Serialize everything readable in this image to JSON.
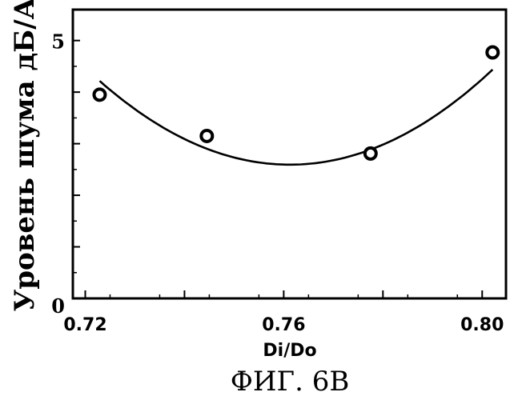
{
  "chart_data": {
    "type": "scatter",
    "xlabel": "Di/Do",
    "ylabel": "Уровень шума дБ/А",
    "caption": "ФИГ. 6В",
    "xlim": [
      0.7175,
      0.8048
    ],
    "ylim": [
      0,
      5.6
    ],
    "x_ticks": [
      {
        "value": 0.72,
        "label": "0.72"
      },
      {
        "value": 0.76,
        "label": "0.76"
      },
      {
        "value": 0.8,
        "label": "0.80"
      }
    ],
    "y_ticks": [
      {
        "value": 0,
        "label": "0"
      },
      {
        "value": 5,
        "label": "5"
      }
    ],
    "points": [
      {
        "x": 0.7229,
        "y": 3.95
      },
      {
        "x": 0.7445,
        "y": 3.15
      },
      {
        "x": 0.7775,
        "y": 2.81
      },
      {
        "x": 0.8021,
        "y": 4.77
      }
    ],
    "fit_curve": {
      "type": "quadratic",
      "x": [
        0.7229,
        0.7325,
        0.7425,
        0.7525,
        0.7585,
        0.7625,
        0.7725,
        0.7825,
        0.7925,
        0.8021
      ],
      "y": [
        4.26,
        3.48,
        2.95,
        2.64,
        2.59,
        2.61,
        2.77,
        3.13,
        3.68,
        4.4
      ]
    },
    "grid": false
  }
}
